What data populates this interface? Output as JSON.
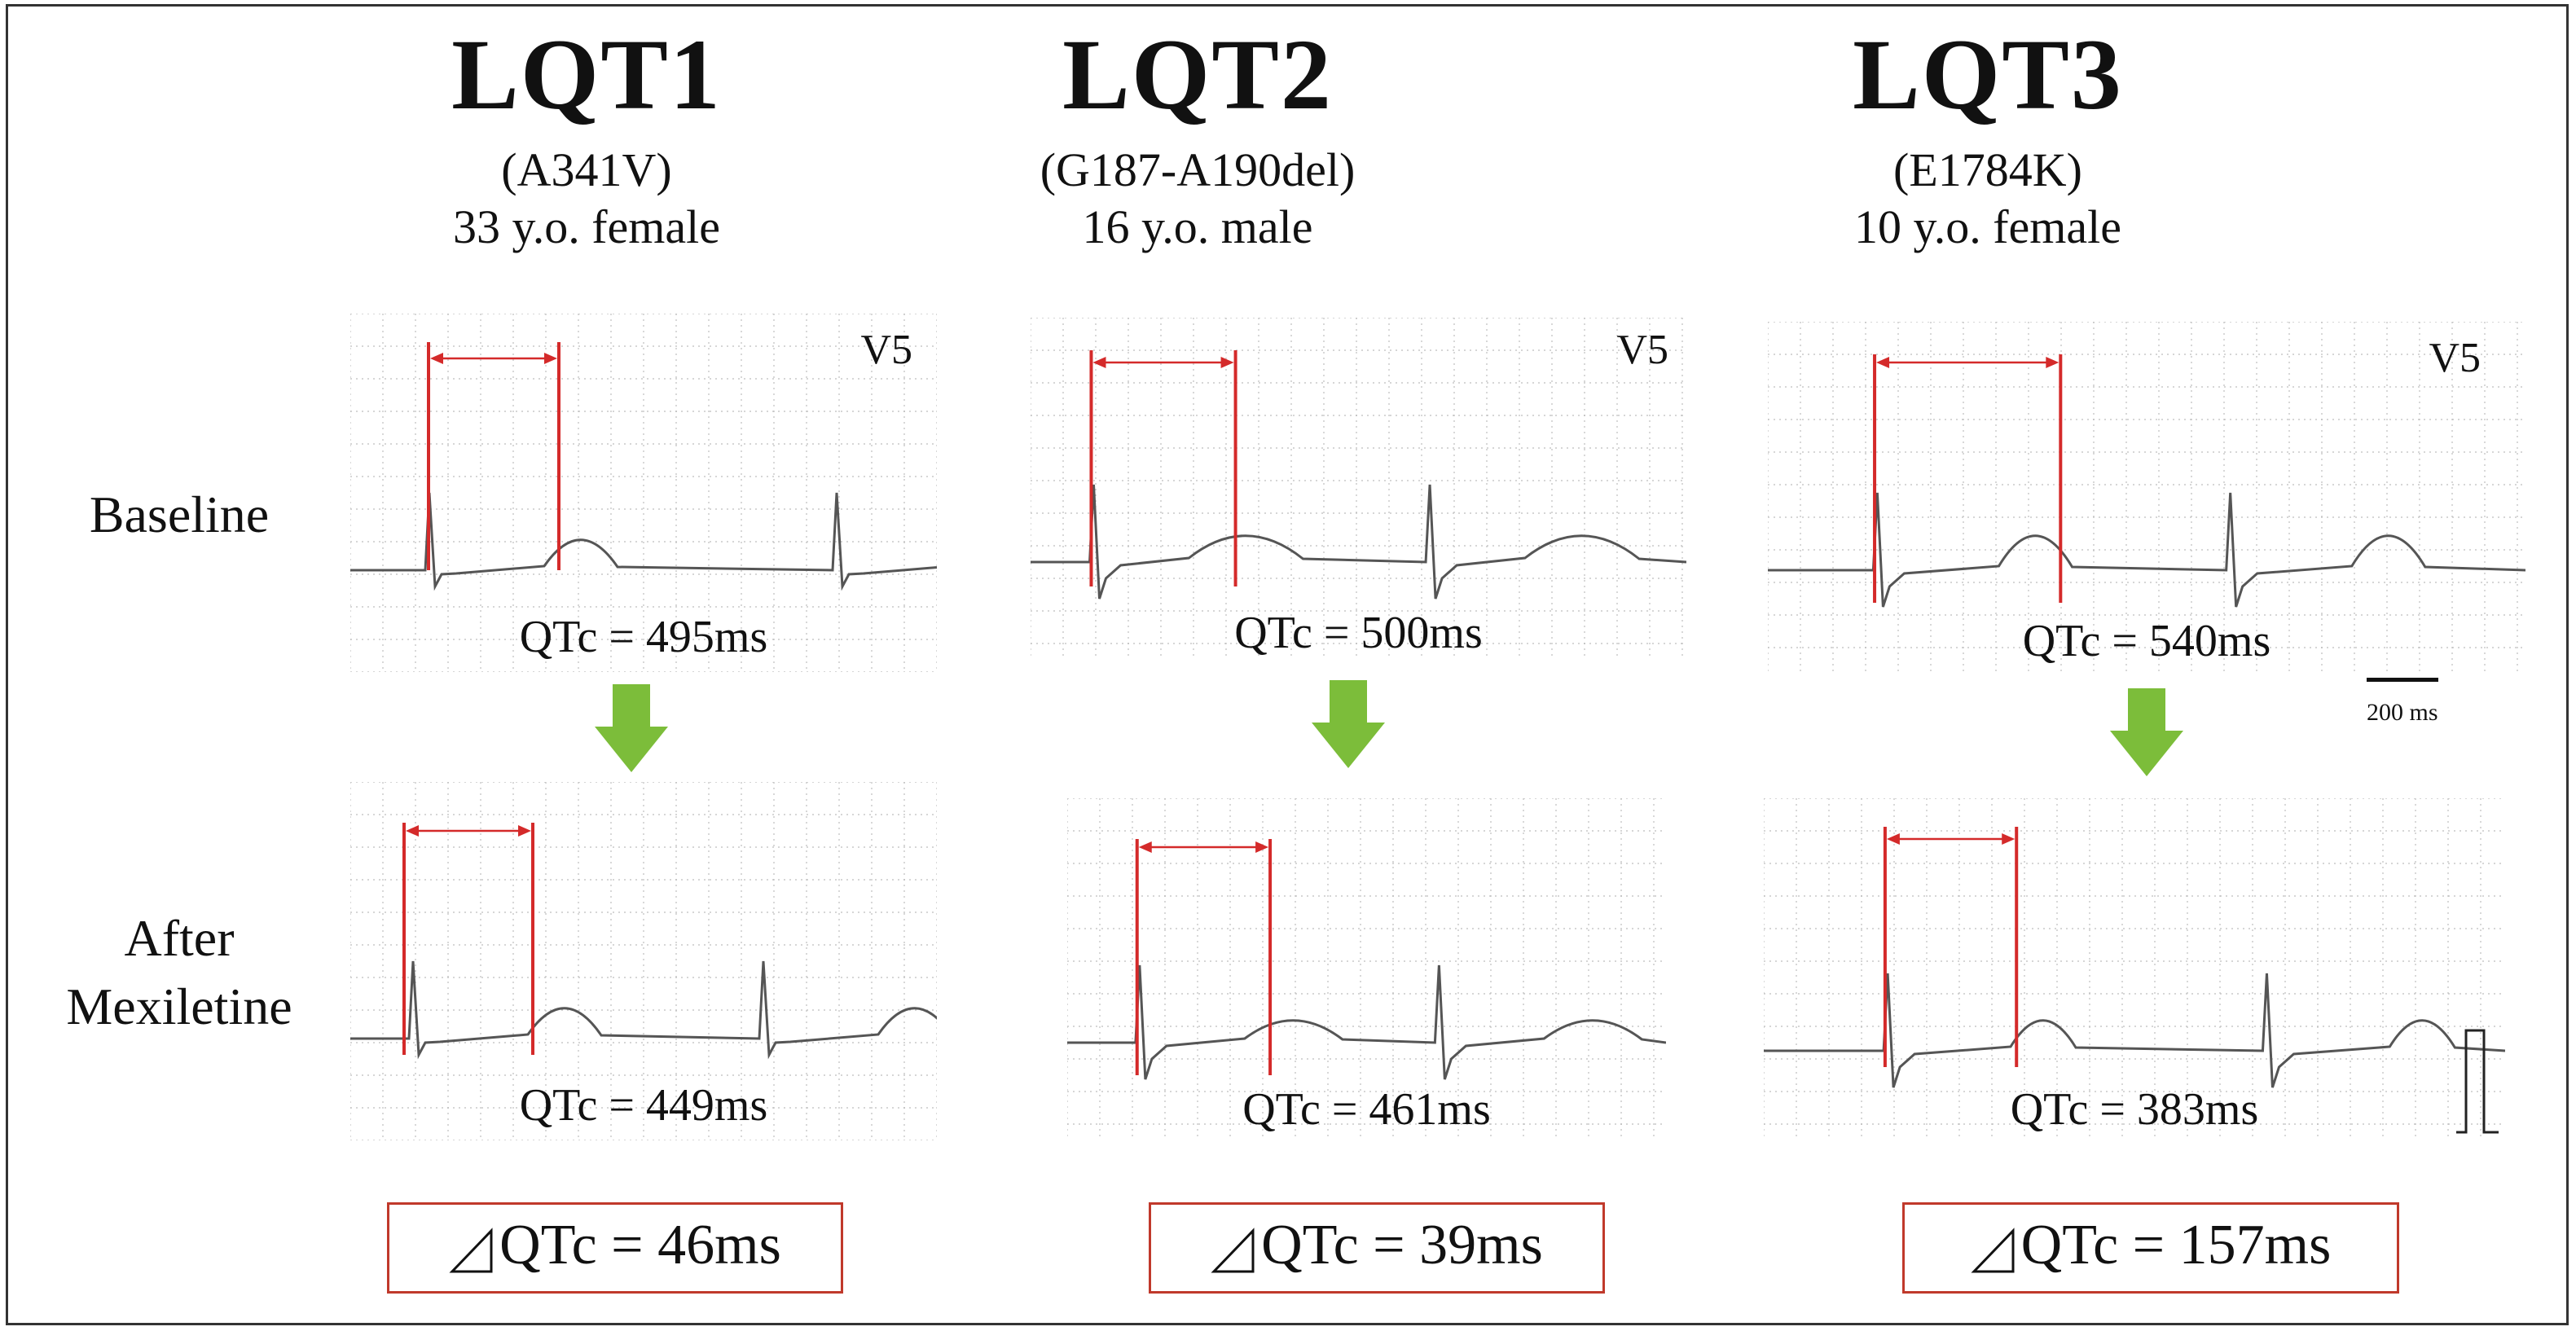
{
  "columns": [
    {
      "name": "LQT1",
      "mutation": "(A341V)",
      "patient": "33 y.o. female",
      "baseline_lead": "V5",
      "baseline_qtc": "QTc = 495ms",
      "after_qtc": "QTc = 449ms",
      "delta_label": "QTc = 46ms"
    },
    {
      "name": "LQT2",
      "mutation": "(G187-A190del)",
      "patient": "16 y.o. male",
      "baseline_lead": "V5",
      "baseline_qtc": "QTc = 500ms",
      "after_qtc": "QTc = 461ms",
      "delta_label": "QTc = 39ms"
    },
    {
      "name": "LQT3",
      "mutation": "(E1784K)",
      "patient": "10 y.o. female",
      "baseline_lead": "V5",
      "baseline_qtc": "QTc = 540ms",
      "after_qtc": "QTc = 383ms",
      "delta_label": "QTc = 157ms"
    }
  ],
  "rows": {
    "baseline": "Baseline",
    "after_line1": "After",
    "after_line2": "Mexiletine"
  },
  "scale_bar": "200 ms",
  "colors": {
    "marker": "#d42a2a",
    "arrow": "#7cbd3a",
    "grid": "#bdbdbd",
    "trace": "#555555"
  }
}
